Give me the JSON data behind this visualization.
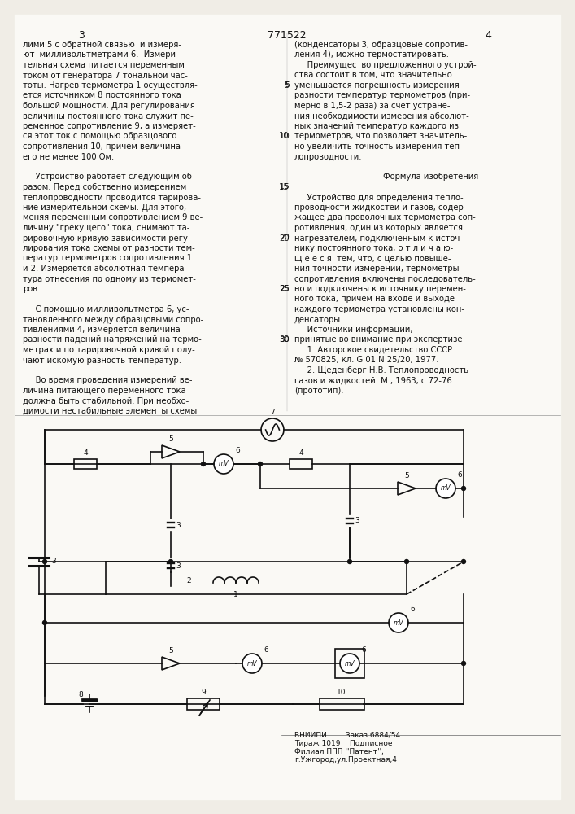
{
  "page_bg": "#f5f5f0",
  "text_color": "#1a1a1a",
  "line_color": "#1a1a1a",
  "page_number_left": "3",
  "page_number_center": "771522",
  "page_number_right": "4",
  "left_column_text": [
    "лими 5 с обратной связью  и измеря-",
    "ют  милливольтметрами 6.  Измери-",
    "тельная схема питается переменным",
    "током от генератора 7 тональной час-",
    "тоты. Нагрев термометра 1 осуществля-",
    "ется источником 8 постоянного тока",
    "большой мощности. Для регулирования",
    "величины постоянного тока служит пе-",
    "ременное сопротивление 9, а измеряет-",
    "ся этот ток с помощью образцового",
    "сопротивления 10, причем величина",
    "его не менее 100 Ом.",
    "",
    "     Устройство работает следующим об-",
    "разом. Перед собственно измерением",
    "теплопроводности проводится тарирова-",
    "ние измерительной схемы. Для этого,",
    "меняя переменным сопротивлением 9 ве-",
    "личину \"грекущего\" тока, снимают та-",
    "рировочную кривую зависимости регу-",
    "лирования тока схемы от разности тем-",
    "ператур термометров сопротивления 1",
    "и 2. Измеряется абсолютная темпера-",
    "тура отнесения по одному из термомет-",
    "ров.",
    "",
    "     С помощью милливольтметра 6, ус-",
    "тановленного между образцовыми сопро-",
    "тивлениями 4, измеряется величина",
    "разности падений напряжений на термо-",
    "метрах и по тарировочной кривой полу-",
    "чают искомую разность температур.",
    "",
    "     Во время проведения измерений ве-",
    "личина питающего переменного тока",
    "должна быть стабильной. При необхо-",
    "димости нестабильные элементы схемы"
  ],
  "right_column_text": [
    "(конденсаторы 3, образцовые сопротив-",
    "ления 4), можно термостатировать.",
    "     Преимущество предложенного устрой-",
    "ства состоит в том, что значительно",
    "уменьшается погрешность измерения",
    "разности температур термометров (при-",
    "мерно в 1,5-2 раза) за счет устране-",
    "ния необходимости измерения абсолют-",
    "ных значений температур каждого из",
    "термометров, что позволяет значитель-",
    "но увеличить точность измерения теп-",
    "лопроводности.",
    "",
    "Формула изобретения",
    "",
    "     Устройство для определения тепло-",
    "проводности жидкостей и газов, содер-",
    "жащее два проволочных термометра соп-",
    "ротивления, один из которых является",
    "нагревателем, подключенным к источ-",
    "нику постоянного тока, о т л и ч а ю-",
    "щ е е с я  тем, что, с целью повыше-",
    "ния точности измерений, термометры",
    "сопротивления включены последователь-",
    "но и подключены к источнику перемен-",
    "ного тока, причем на входе и выходе",
    "каждого термометра установлены кон-",
    "денсаторы.",
    "     Источники информации,",
    "принятые во внимание при экспертизе",
    "     1. Авторское свидетельство СССР",
    "№ 570825, кл. G 01 N 25/20, 1977.",
    "     2. Щеденберг Н.В. Теплопроводность",
    "газов и жидкостей. М., 1963, с.72-76",
    "(прототип)."
  ],
  "right_line_numbers": [
    5,
    10,
    15,
    20,
    25,
    30
  ],
  "footer_left_line1": "ВНИИПИ        Заказ 6884/54",
  "footer_left_line2": "Тираж 1019    Подписное",
  "footer_left_line3": "Филиал ППП ''Патент'',",
  "footer_left_line4": "г.Ужгород,ул.Проектная,4"
}
